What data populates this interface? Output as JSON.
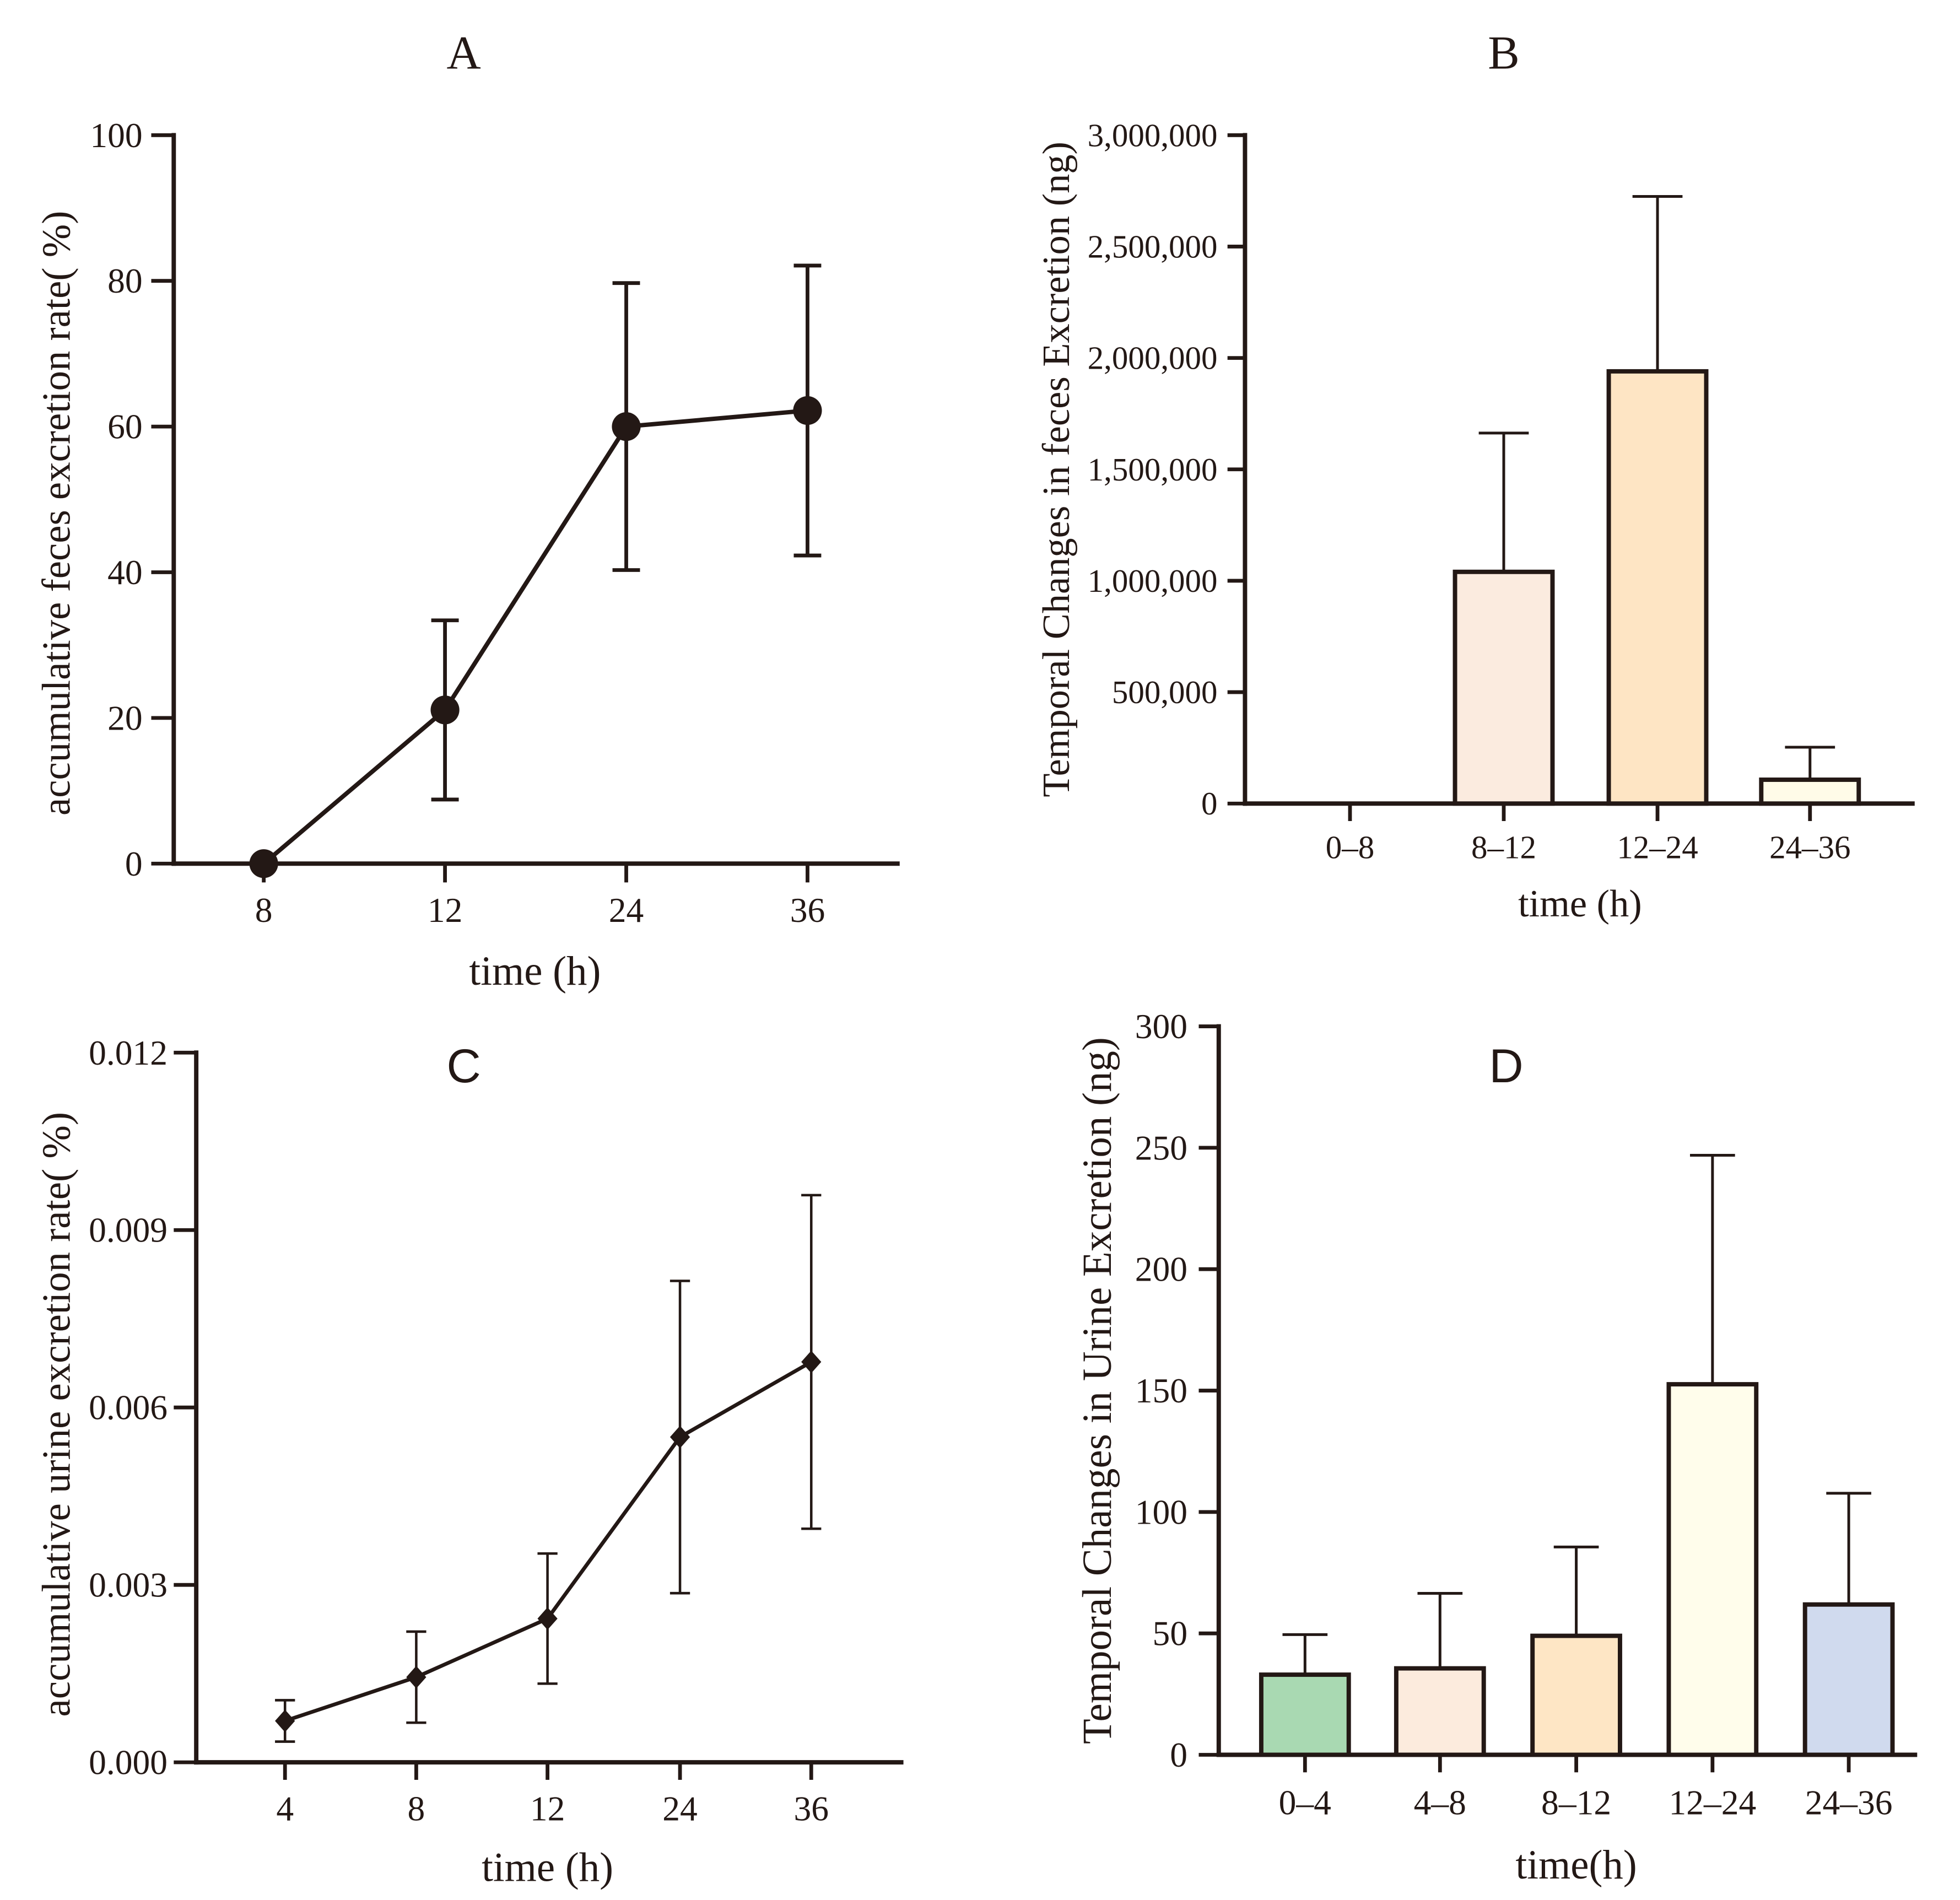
{
  "chart_data": [
    {
      "type": "line",
      "title": "A",
      "xlabel": "time (h)",
      "ylabel": "accumulative feces excretion rate( %)",
      "categories": [
        "8",
        "12",
        "24",
        "36"
      ],
      "values": [
        0,
        21.1,
        60.0,
        62.2
      ],
      "error": [
        0,
        12.3,
        19.7,
        19.9
      ],
      "ylim": [
        0,
        100
      ],
      "yticks": [
        0,
        20,
        40,
        60,
        80,
        100
      ],
      "ytick_labels": [
        "0",
        "20",
        "40",
        "60",
        "80",
        "100"
      ],
      "grid": false,
      "color": "#231815"
    },
    {
      "type": "bar",
      "title": "B",
      "xlabel": "time (h)",
      "ylabel": "Temporal Changes in feces Excretion (ng)",
      "categories": [
        "0–8",
        "8–12",
        "12–24",
        "24–36"
      ],
      "values": [
        0,
        1040000,
        1940000,
        107000
      ],
      "error": [
        0,
        623000,
        785000,
        146000
      ],
      "ylim": [
        0,
        3000000
      ],
      "yticks": [
        0,
        500000,
        1000000,
        1500000,
        2000000,
        2500000,
        3000000
      ],
      "ytick_labels": [
        "0",
        "500,000",
        "1,000,000",
        "1,500,000",
        "2,000,000",
        "2,500,000",
        "3,000,000"
      ],
      "grid": false,
      "bar_colors": [
        "#ffffff",
        "#fbebdf",
        "#fee5c4",
        "#fffbe8"
      ]
    },
    {
      "type": "line",
      "title": "C",
      "xlabel": "time (h)",
      "ylabel": "accumulative urine excretion rate( %)",
      "categories": [
        "4",
        "8",
        "12",
        "24",
        "36"
      ],
      "values": [
        0.0007,
        0.00144,
        0.00243,
        0.0055,
        0.00677
      ],
      "error": [
        0.00035,
        0.00077,
        0.0011,
        0.00264,
        0.00282
      ],
      "ylim": [
        0,
        0.012
      ],
      "yticks": [
        0,
        0.003,
        0.006,
        0.009,
        0.012
      ],
      "ytick_labels": [
        "0.000",
        "0.003",
        "0.006",
        "0.009",
        "0.012"
      ],
      "grid": false,
      "color": "#231815"
    },
    {
      "type": "bar",
      "title": "D",
      "xlabel": "time(h)",
      "ylabel": "Temporal Changes in Urine Excretion (ng)",
      "categories": [
        "0–4",
        "4–8",
        "8–12",
        "12–24",
        "24–36"
      ],
      "values": [
        33.0,
        35.6,
        49.0,
        152.6,
        61.9
      ],
      "error": [
        16.5,
        30.9,
        36.6,
        94.3,
        45.8
      ],
      "ylim": [
        0,
        300
      ],
      "yticks": [
        0,
        50,
        100,
        150,
        200,
        250,
        300
      ],
      "ytick_labels": [
        "0",
        "50",
        "100",
        "150",
        "200",
        "250",
        "300"
      ],
      "grid": false,
      "bar_colors": [
        "#a9d9b2",
        "#fcebdd",
        "#fee6c5",
        "#fffdeb",
        "#d0daee"
      ]
    }
  ]
}
